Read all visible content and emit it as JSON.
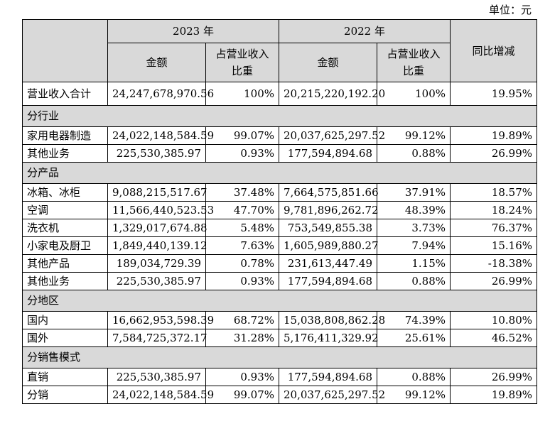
{
  "unit_label": "单位：元",
  "header": {
    "year_2023": "2023 年",
    "year_2022": "2022 年",
    "amount": "金额",
    "share_line1": "占营业收入",
    "share_line2": "比重",
    "yoy": "同比增减"
  },
  "total": {
    "label": "营业收入合计",
    "a2023": "24,247,678,970.56",
    "s2023": "100%",
    "a2022": "20,215,220,192.20",
    "s2022": "100%",
    "yoy": "19.95%"
  },
  "sections": [
    {
      "title": "分行业",
      "rows": [
        {
          "label": "家用电器制造",
          "a2023": "24,022,148,584.59",
          "s2023": "99.07%",
          "a2022": "20,037,625,297.52",
          "s2022": "99.12%",
          "yoy": "19.89%"
        },
        {
          "label": "其他业务",
          "a2023": "225,530,385.97",
          "s2023": "0.93%",
          "a2022": "177,594,894.68",
          "s2022": "0.88%",
          "yoy": "26.99%"
        }
      ]
    },
    {
      "title": "分产品",
      "rows": [
        {
          "label": "冰箱、冰柜",
          "a2023": "9,088,215,517.67",
          "s2023": "37.48%",
          "a2022": "7,664,575,851.66",
          "s2022": "37.91%",
          "yoy": "18.57%"
        },
        {
          "label": "空调",
          "a2023": "11,566,440,523.53",
          "s2023": "47.70%",
          "a2022": "9,781,896,262.72",
          "s2022": "48.39%",
          "yoy": "18.24%"
        },
        {
          "label": "洗衣机",
          "a2023": "1,329,017,674.88",
          "s2023": "5.48%",
          "a2022": "753,549,855.38",
          "s2022": "3.73%",
          "yoy": "76.37%"
        },
        {
          "label": "小家电及厨卫",
          "a2023": "1,849,440,139.12",
          "s2023": "7.63%",
          "a2022": "1,605,989,880.27",
          "s2022": "7.94%",
          "yoy": "15.16%"
        },
        {
          "label": "其他产品",
          "a2023": "189,034,729.39",
          "s2023": "0.78%",
          "a2022": "231,613,447.49",
          "s2022": "1.15%",
          "yoy": "-18.38%"
        },
        {
          "label": "其他业务",
          "a2023": "225,530,385.97",
          "s2023": "0.93%",
          "a2022": "177,594,894.68",
          "s2022": "0.88%",
          "yoy": "26.99%"
        }
      ]
    },
    {
      "title": "分地区",
      "rows": [
        {
          "label": "国内",
          "a2023": "16,662,953,598.39",
          "s2023": "68.72%",
          "a2022": "15,038,808,862.28",
          "s2022": "74.39%",
          "yoy": "10.80%"
        },
        {
          "label": "国外",
          "a2023": "7,584,725,372.17",
          "s2023": "31.28%",
          "a2022": "5,176,411,329.92",
          "s2022": "25.61%",
          "yoy": "46.52%"
        }
      ]
    },
    {
      "title": "分销售模式",
      "rows": [
        {
          "label": "直销",
          "a2023": "225,530,385.97",
          "s2023": "0.93%",
          "a2022": "177,594,894.68",
          "s2022": "0.88%",
          "yoy": "26.99%"
        },
        {
          "label": "分销",
          "a2023": "24,022,148,584.59",
          "s2023": "99.07%",
          "a2022": "20,037,625,297.52",
          "s2022": "99.12%",
          "yoy": "19.89%"
        }
      ]
    }
  ]
}
